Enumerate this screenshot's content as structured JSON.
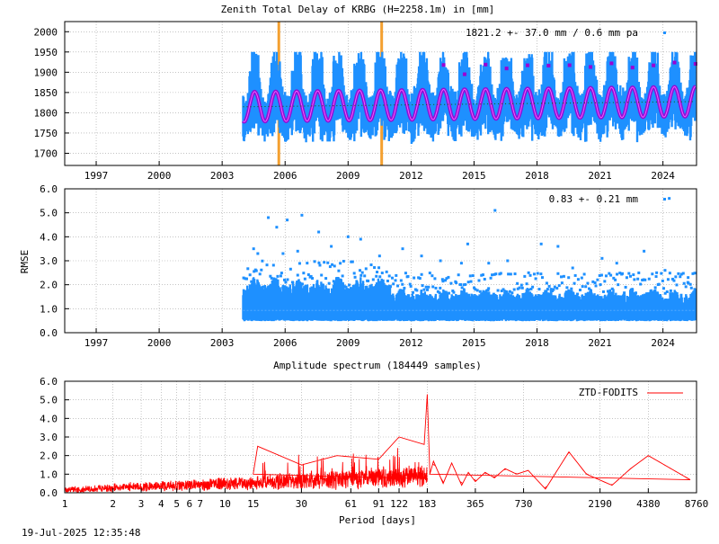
{
  "colors": {
    "ztd": "#1e90ff",
    "model": "#9b00d3",
    "mean_line": "#006400",
    "event": "#f4a030",
    "rmse": "#1e90ff",
    "spectrum": "#ff0000"
  },
  "footer": {
    "timestamp": "19-Jul-2025 12:35:48"
  },
  "chart_data": [
    {
      "type": "scatter",
      "title": "Zenith Total Delay of KRBG (H=2258.1m) in [mm]",
      "annotation": "1821.2 +-  37.0 mm /  0.6 mm pa",
      "xlabel": "",
      "ylabel": "",
      "xlim": [
        1995.5,
        2025.6
      ],
      "ylim": [
        1670,
        2025
      ],
      "x_ticks": [
        "1997",
        "2000",
        "2003",
        "2006",
        "2009",
        "2012",
        "2015",
        "2018",
        "2021",
        "2024"
      ],
      "x_tick_values": [
        1997,
        2000,
        2003,
        2006,
        2009,
        2012,
        2015,
        2018,
        2021,
        2024
      ],
      "y_ticks": [
        1700,
        1750,
        1800,
        1850,
        1900,
        1950,
        2000
      ],
      "grid": true,
      "data_start": 2004.0,
      "data_end": 2025.55,
      "mean": 1821.2,
      "trend_mm_per_year": 0.6,
      "seasonal_amplitude": 37.0,
      "max_seasonal_peak": 1940,
      "min_seasonal_trough": 1715,
      "event_lines": [
        2005.7,
        2010.6
      ],
      "series": [
        {
          "values": "daily ZTD series 2004.0-2025.55"
        },
        {
          "values": "seasonal ZTD model"
        }
      ]
    },
    {
      "type": "scatter",
      "title": "",
      "annotation": "0.83 +-  0.21 mm",
      "xlabel": "",
      "ylabel": "RMSE",
      "xlim": [
        1995.5,
        2025.6
      ],
      "ylim": [
        0,
        6
      ],
      "x_ticks": [
        "1997",
        "2000",
        "2003",
        "2006",
        "2009",
        "2012",
        "2015",
        "2018",
        "2021",
        "2024"
      ],
      "x_tick_values": [
        1997,
        2000,
        2003,
        2006,
        2009,
        2012,
        2015,
        2018,
        2021,
        2024
      ],
      "y_ticks": [
        "0.0",
        "1.0",
        "2.0",
        "3.0",
        "4.0",
        "5.0",
        "6.0"
      ],
      "y_tick_values": [
        0,
        1,
        2,
        3,
        4,
        5,
        6
      ],
      "grid": true,
      "mean": 0.83,
      "std": 0.21,
      "outliers": [
        {
          "x": 2004.5,
          "y": 3.5
        },
        {
          "x": 2004.7,
          "y": 3.3
        },
        {
          "x": 2005.2,
          "y": 4.8
        },
        {
          "x": 2005.6,
          "y": 4.4
        },
        {
          "x": 2006.1,
          "y": 4.7
        },
        {
          "x": 2006.8,
          "y": 4.9
        },
        {
          "x": 2005.9,
          "y": 3.3
        },
        {
          "x": 2006.6,
          "y": 3.4
        },
        {
          "x": 2007.6,
          "y": 4.2
        },
        {
          "x": 2008.2,
          "y": 3.6
        },
        {
          "x": 2009.0,
          "y": 4.0
        },
        {
          "x": 2009.6,
          "y": 3.9
        },
        {
          "x": 2010.5,
          "y": 3.2
        },
        {
          "x": 2011.6,
          "y": 3.5
        },
        {
          "x": 2012.5,
          "y": 3.2
        },
        {
          "x": 2013.4,
          "y": 3.0
        },
        {
          "x": 2014.7,
          "y": 3.7
        },
        {
          "x": 2014.4,
          "y": 2.9
        },
        {
          "x": 2015.7,
          "y": 2.9
        },
        {
          "x": 2016.0,
          "y": 5.1
        },
        {
          "x": 2016.6,
          "y": 3.0
        },
        {
          "x": 2017.6,
          "y": 2.5
        },
        {
          "x": 2018.2,
          "y": 3.7
        },
        {
          "x": 2019.0,
          "y": 3.6
        },
        {
          "x": 2019.7,
          "y": 2.7
        },
        {
          "x": 2021.1,
          "y": 3.1
        },
        {
          "x": 2021.8,
          "y": 2.9
        },
        {
          "x": 2023.1,
          "y": 3.4
        },
        {
          "x": 2023.7,
          "y": 2.5
        },
        {
          "x": 2024.1,
          "y": 2.6
        },
        {
          "x": 2024.3,
          "y": 5.6
        },
        {
          "x": 2025.2,
          "y": 2.3
        }
      ]
    },
    {
      "type": "line",
      "title": "Amplitude spectrum (184449 samples)",
      "xlabel": "Period [days]",
      "ylabel": "",
      "x_scale": "log",
      "xlim": [
        1,
        8760
      ],
      "ylim": [
        0,
        6
      ],
      "x_ticks": [
        "1",
        "2",
        "3",
        "4",
        "5",
        "6",
        "7",
        "10",
        "15",
        "30",
        "61",
        "91",
        "122",
        "183",
        "365",
        "730",
        "2190",
        "4380",
        "8760"
      ],
      "x_tick_values": [
        1,
        2,
        3,
        4,
        5,
        6,
        7,
        10,
        15,
        30,
        61,
        91,
        122,
        183,
        365,
        730,
        2190,
        4380,
        8760
      ],
      "y_ticks": [
        "0.0",
        "1.0",
        "2.0",
        "3.0",
        "4.0",
        "5.0",
        "6.0"
      ],
      "y_tick_values": [
        0,
        1,
        2,
        3,
        4,
        5,
        6
      ],
      "grid": true,
      "legend": {
        "position": "top-right",
        "entries": [
          "ZTD-FODITS"
        ]
      },
      "series": [
        {
          "name": "ZTD-FODITS",
          "points": [
            {
              "x": 1,
              "y": 0.3
            },
            {
              "x": 1.05,
              "y": 0.9
            },
            {
              "x": 1.1,
              "y": 0.15
            },
            {
              "x": 2,
              "y": 0.3
            },
            {
              "x": 3,
              "y": 0.4
            },
            {
              "x": 5,
              "y": 0.55
            },
            {
              "x": 7,
              "y": 0.7
            },
            {
              "x": 10,
              "y": 0.8
            },
            {
              "x": 15,
              "y": 1.0
            },
            {
              "x": 16,
              "y": 2.5
            },
            {
              "x": 30,
              "y": 1.5
            },
            {
              "x": 50,
              "y": 2.0
            },
            {
              "x": 91,
              "y": 1.8
            },
            {
              "x": 122,
              "y": 3.0
            },
            {
              "x": 175,
              "y": 2.6
            },
            {
              "x": 183,
              "y": 5.3
            },
            {
              "x": 190,
              "y": 1.0
            },
            {
              "x": 200,
              "y": 1.7
            },
            {
              "x": 230,
              "y": 0.5
            },
            {
              "x": 260,
              "y": 1.6
            },
            {
              "x": 300,
              "y": 0.4
            },
            {
              "x": 330,
              "y": 1.1
            },
            {
              "x": 365,
              "y": 0.6
            },
            {
              "x": 420,
              "y": 1.1
            },
            {
              "x": 480,
              "y": 0.8
            },
            {
              "x": 560,
              "y": 1.3
            },
            {
              "x": 660,
              "y": 1.0
            },
            {
              "x": 780,
              "y": 1.2
            },
            {
              "x": 1000,
              "y": 0.2
            },
            {
              "x": 1400,
              "y": 2.2
            },
            {
              "x": 1800,
              "y": 1.0
            },
            {
              "x": 2600,
              "y": 0.4
            },
            {
              "x": 3400,
              "y": 1.3
            },
            {
              "x": 4380,
              "y": 2.0
            },
            {
              "x": 8000,
              "y": 0.7
            }
          ]
        }
      ]
    }
  ]
}
